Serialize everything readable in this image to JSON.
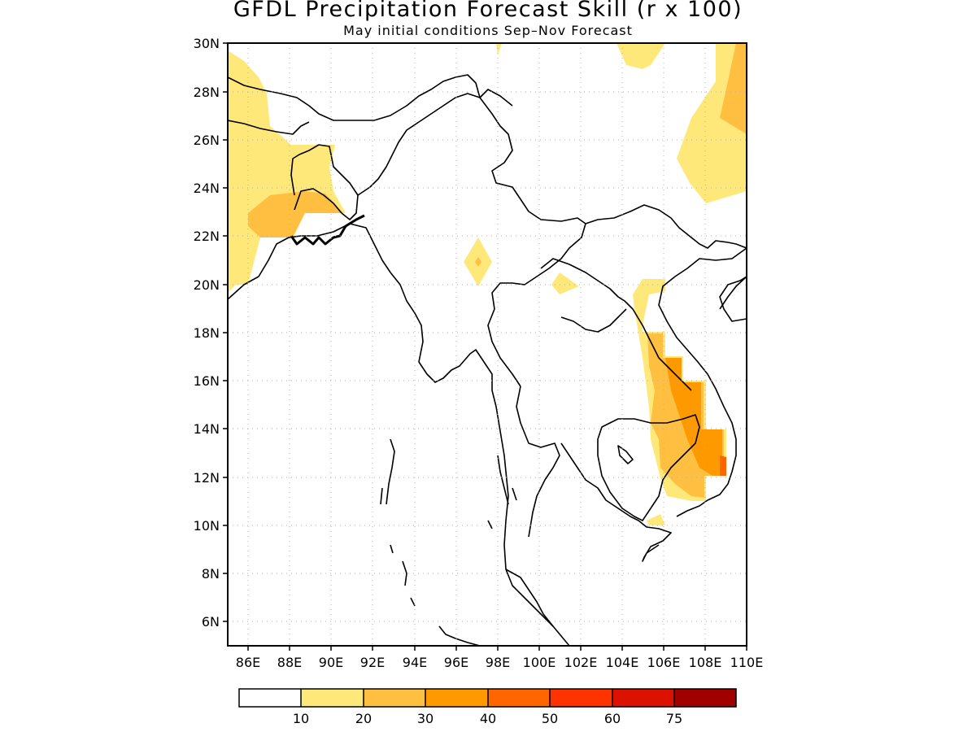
{
  "title": "GFDL Precipitation Forecast Skill (r x 100)",
  "subtitle": "May initial conditions  Sep–Nov Forecast",
  "map": {
    "lon_range": [
      85,
      110
    ],
    "lat_range": [
      5,
      30
    ],
    "lon_ticks": [
      "86E",
      "88E",
      "90E",
      "92E",
      "94E",
      "96E",
      "98E",
      "100E",
      "102E",
      "104E",
      "106E",
      "108E",
      "110E"
    ],
    "lat_ticks": [
      "30N",
      "28N",
      "26N",
      "24N",
      "22N",
      "20N",
      "18N",
      "16N",
      "14N",
      "12N",
      "10N",
      "8N",
      "6N"
    ],
    "grid": "dotted"
  },
  "legend": {
    "labels": [
      "10",
      "20",
      "30",
      "40",
      "50",
      "60",
      "75"
    ],
    "colors": [
      "#ffffff",
      "#ffe87a",
      "#ffbf40",
      "#ff9900",
      "#ff6600",
      "#ff3300",
      "#dd1100",
      "#a00000"
    ]
  }
}
